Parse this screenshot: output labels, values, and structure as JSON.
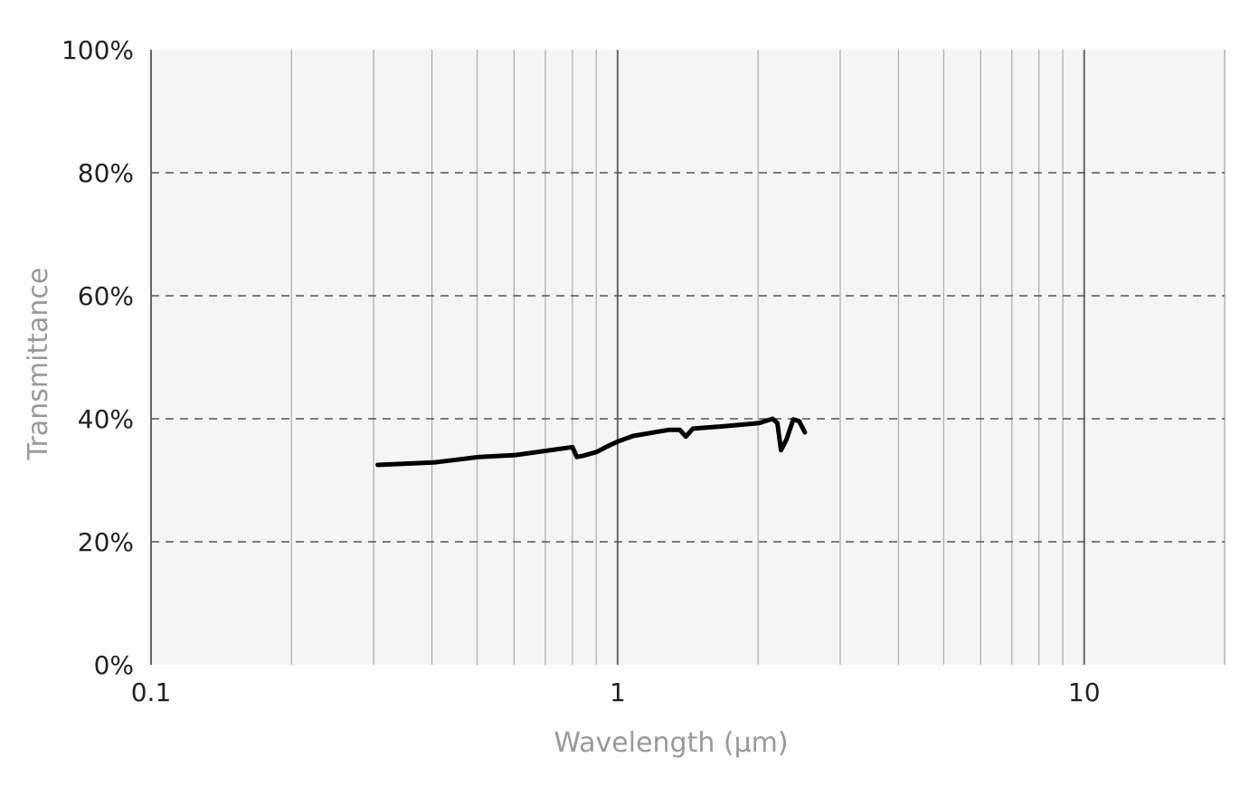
{
  "chart_data": {
    "type": "line",
    "title": "",
    "xlabel": "Wavelength (µm)",
    "ylabel": "Transmittance",
    "x_scale": "log",
    "xlim": [
      0.1,
      20
    ],
    "ylim": [
      0,
      100
    ],
    "x_ticks": [
      {
        "value": 0.1,
        "label": "0.1"
      },
      {
        "value": 1,
        "label": "1"
      },
      {
        "value": 10,
        "label": "10"
      }
    ],
    "y_ticks": [
      {
        "value": 0,
        "label": "0%"
      },
      {
        "value": 20,
        "label": "20%"
      },
      {
        "value": 40,
        "label": "40%"
      },
      {
        "value": 60,
        "label": "60%"
      },
      {
        "value": 80,
        "label": "80%"
      },
      {
        "value": 100,
        "label": "100%"
      }
    ],
    "grid": {
      "x_major": true,
      "x_minor": true,
      "y": "dashed"
    },
    "colors": {
      "plot_bg": "#f5f5f5",
      "line": "#000000",
      "axis_label": "#999999"
    },
    "series": [
      {
        "x": [
          0.306,
          0.404,
          0.505,
          0.604,
          0.8,
          0.818,
          0.844,
          0.902,
          0.944,
          1.0,
          1.079,
          1.29,
          1.36,
          1.4,
          1.45,
          1.69,
          2.01,
          2.15,
          2.2,
          2.24,
          2.3,
          2.38,
          2.45,
          2.52
        ],
        "y": [
          32.5,
          32.9,
          33.8,
          34.1,
          35.4,
          33.8,
          34.0,
          34.6,
          35.4,
          36.3,
          37.2,
          38.2,
          38.2,
          37.1,
          38.4,
          38.8,
          39.3,
          40.0,
          39.3,
          34.9,
          36.6,
          39.9,
          39.6,
          37.8
        ]
      }
    ]
  }
}
